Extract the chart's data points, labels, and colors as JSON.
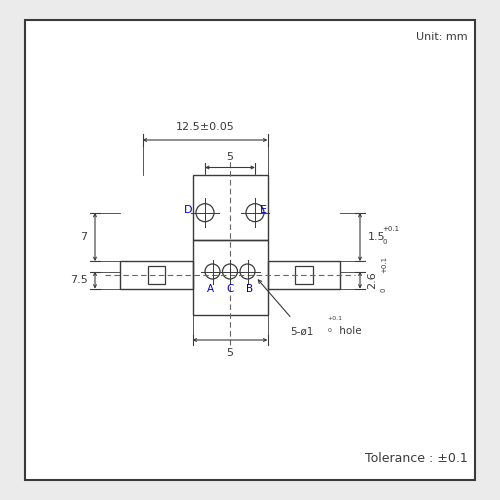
{
  "unit_text": "Unit: mm",
  "tolerance_text": "Tolerance : ±0.1",
  "dim_12_5": "12.5±0.05",
  "dim_5_top": "5",
  "dim_5_bot": "5",
  "dim_7": "7",
  "dim_7_5": "7.5",
  "dim_1_5": "1.5",
  "dim_2_6": "2.6",
  "label_D": "D",
  "label_E": "E",
  "label_A": "A",
  "label_C": "C",
  "label_B": "B",
  "bg_color": "#ebebeb",
  "box_color": "#ffffff",
  "line_color": "#3a3a3a",
  "dash_color": "#666666",
  "label_color": "#0000bb"
}
